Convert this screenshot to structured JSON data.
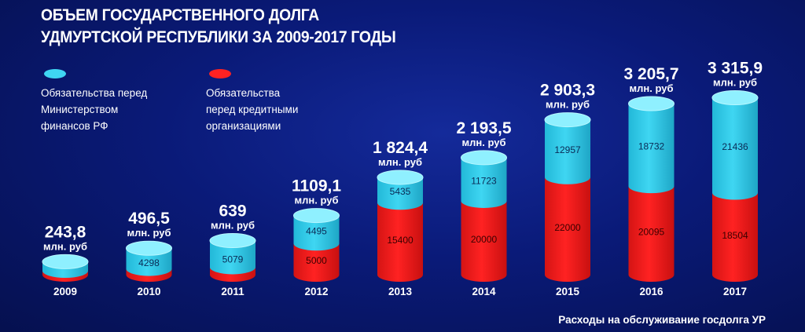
{
  "title_lines": [
    "ОБЪЕМ ГОСУДАРСТВЕННОГО ДОЛГА",
    "УДМУРТСКОЙ РЕСПУБЛИКИ ЗА 2009-2017 ГОДЫ"
  ],
  "legend": [
    {
      "label": "Обязательства перед\nМинистерством\nфинансов РФ",
      "color": "#3fd6f2"
    },
    {
      "label": "Обязательства\nперед кредитными\nорганизациями",
      "color": "#ff2222"
    }
  ],
  "footer": "Расходы на обслуживание госдолга УР",
  "colors": {
    "cyan": "#3fd6f2",
    "red": "#ff2222"
  },
  "chart_data": {
    "type": "bar",
    "categories": [
      "2009",
      "2010",
      "2011",
      "2012",
      "2013",
      "2014",
      "2015",
      "2016",
      "2017"
    ],
    "totals": [
      "243,8",
      "496,5",
      "639",
      "1109,1",
      "1 824,4",
      "2 193,5",
      "2 903,3",
      "3 205,7",
      "3 315,9"
    ],
    "totals_values": [
      243.8,
      496.5,
      639,
      1109.1,
      1824.4,
      2193.5,
      2903.3,
      3205.7,
      3315.9
    ],
    "unit": "млн. руб",
    "series": [
      {
        "name": "Обязательства перед Министерством финансов РФ",
        "values": [
          null,
          4298,
          5079,
          4495,
          5435,
          11723,
          12957,
          18732,
          21436
        ]
      },
      {
        "name": "Обязательства перед кредитными организациями",
        "values": [
          null,
          null,
          null,
          5000,
          15400,
          20000,
          22000,
          20095,
          18504
        ]
      }
    ]
  }
}
